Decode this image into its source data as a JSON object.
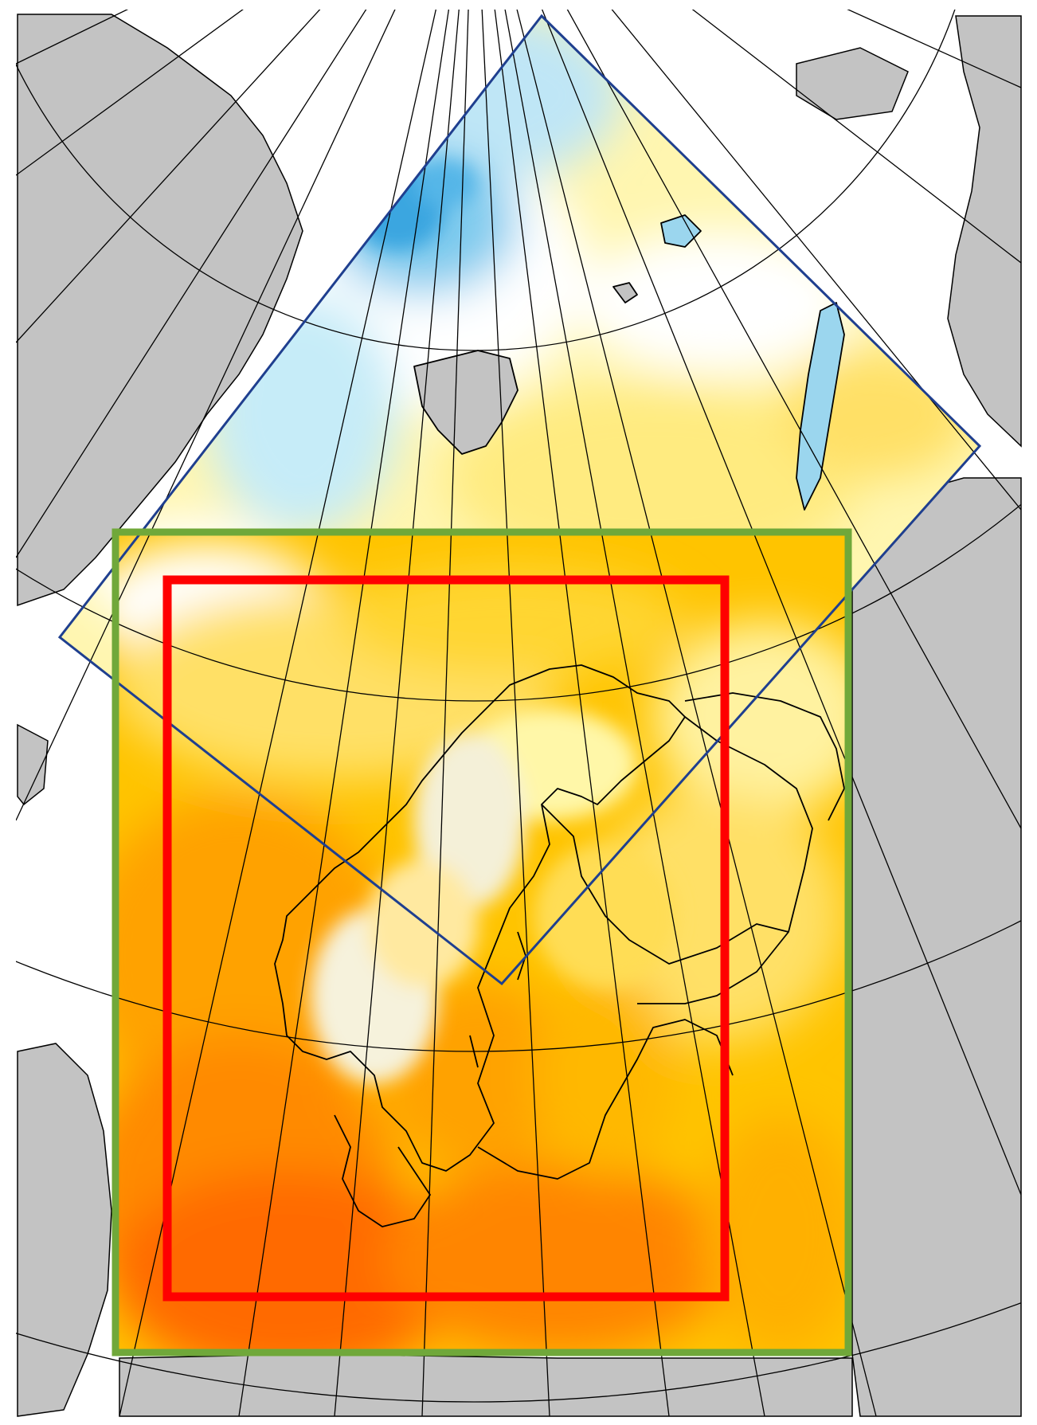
{
  "map": {
    "colors": {
      "background": "#ffffff",
      "land": "#c3c3c3",
      "coast": "#000000",
      "graticule": "#000000",
      "field_cold": "#3aa6e0",
      "field_cool": "#9fd8f0",
      "field_neutral": "#ffffff",
      "field_pale": "#fff7a8",
      "field_warm": "#ffe066",
      "field_mid": "#ffcc00",
      "field_hot": "#ffa500",
      "field_hottest": "#ff6a00",
      "terrain_snow": "#f4f0d8"
    },
    "domains": [
      {
        "id": "domain-blue",
        "color": "#1f3f8f"
      },
      {
        "id": "domain-green",
        "color": "#70a83a"
      },
      {
        "id": "domain-red",
        "color": "#ff0000"
      }
    ],
    "icons": [
      "north-pole-icon"
    ]
  }
}
